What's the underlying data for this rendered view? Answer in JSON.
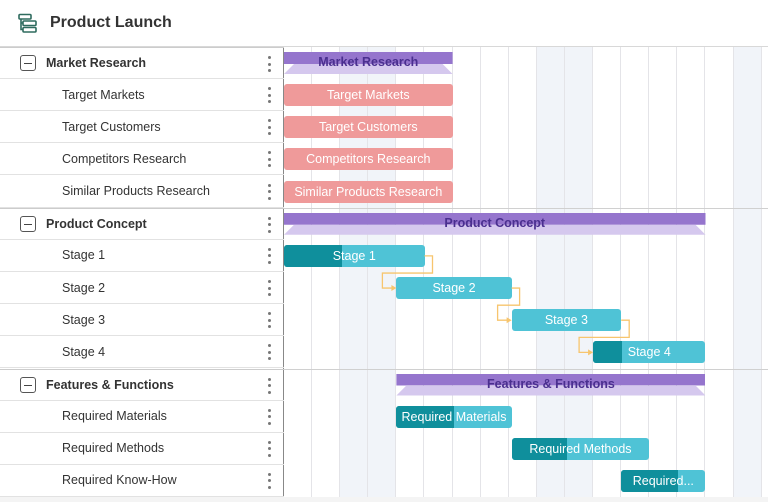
{
  "header": {
    "title": "Product Launch",
    "icon": "gantt-icon"
  },
  "colors": {
    "group": "#9575cd",
    "group_light": "#d5c8ee",
    "task_red": "#ef9a9a",
    "task_teal": "#4fc3d6",
    "progress_teal": "#0f8f9c",
    "dependency": "#f7c56e"
  },
  "timeline": {
    "columns": 17,
    "weekend_columns": [
      2,
      3,
      9,
      10,
      16
    ]
  },
  "rows": [
    {
      "label": "Market Research",
      "type": "group",
      "start": 0,
      "end": 6
    },
    {
      "label": "Target Markets",
      "type": "task",
      "start": 0,
      "end": 6,
      "color": "red",
      "progress": 0
    },
    {
      "label": "Target Customers",
      "type": "task",
      "start": 0,
      "end": 6,
      "color": "red",
      "progress": 0
    },
    {
      "label": "Competitors Research",
      "type": "task",
      "start": 0,
      "end": 6,
      "color": "red",
      "progress": 0
    },
    {
      "label": "Similar Products Research",
      "type": "task",
      "start": 0,
      "end": 6,
      "color": "red",
      "progress": 0
    },
    {
      "label": "Product Concept",
      "type": "group",
      "start": 0,
      "end": 15
    },
    {
      "label": "Stage 1",
      "type": "task",
      "start": 0,
      "end": 5,
      "color": "teal",
      "progress": 0.41
    },
    {
      "label": "Stage 2",
      "type": "task",
      "start": 4,
      "end": 8.1,
      "color": "teal",
      "progress": 0
    },
    {
      "label": "Stage 3",
      "type": "task",
      "start": 8.1,
      "end": 12,
      "color": "teal",
      "progress": 0
    },
    {
      "label": "Stage 4",
      "type": "task",
      "start": 11,
      "end": 15,
      "color": "teal",
      "progress": 0.26
    },
    {
      "label": "Features & Functions",
      "type": "group",
      "start": 4,
      "end": 15
    },
    {
      "label": "Required Materials",
      "type": "task",
      "bar_label": "Required Materials",
      "start": 4,
      "end": 8.1,
      "color": "teal",
      "progress": 0.5
    },
    {
      "label": "Required Methods",
      "type": "task",
      "bar_label": "Required Methods",
      "start": 8.1,
      "end": 13,
      "color": "teal",
      "progress": 0.4
    },
    {
      "label": "Required Know-How",
      "type": "task",
      "bar_label": "Required...",
      "start": 12,
      "end": 15,
      "color": "teal",
      "progress": 0.67
    }
  ]
}
